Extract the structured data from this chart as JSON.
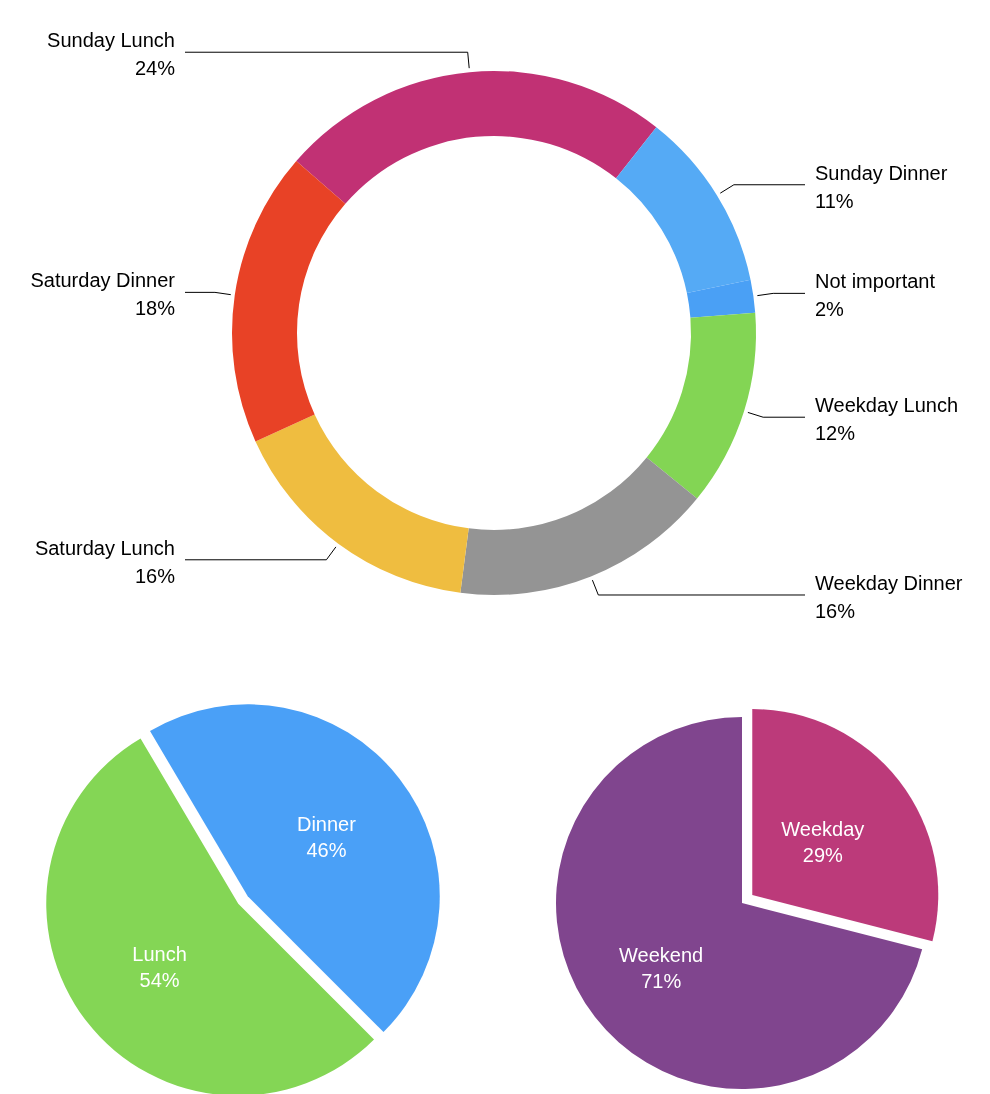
{
  "chart_data": [
    {
      "type": "donut",
      "categories": [
        "Sunday Lunch",
        "Sunday Dinner",
        "Not important",
        "Weekday Lunch",
        "Weekday Dinner",
        "Saturday Lunch",
        "Saturday Dinner"
      ],
      "values": [
        24,
        11,
        2,
        12,
        16,
        16,
        18
      ],
      "value_labels": [
        "24%",
        "11%",
        "2%",
        "12%",
        "16%",
        "16%",
        "18%"
      ],
      "colors": [
        "#c13174",
        "#55aaf5",
        "#4aa0f5",
        "#83d554",
        "#949494",
        "#efbd40",
        "#e84226"
      ]
    },
    {
      "type": "pie",
      "categories": [
        "Lunch",
        "Dinner"
      ],
      "values": [
        54,
        46
      ],
      "value_labels": [
        "54%",
        "46%"
      ],
      "colors": [
        "#84d655",
        "#4aa0f7"
      ]
    },
    {
      "type": "pie",
      "categories": [
        "Weekday",
        "Weekend"
      ],
      "values": [
        29,
        71
      ],
      "value_labels": [
        "29%",
        "71%"
      ],
      "colors": [
        "#bc3a7a",
        "#80458e"
      ]
    }
  ]
}
